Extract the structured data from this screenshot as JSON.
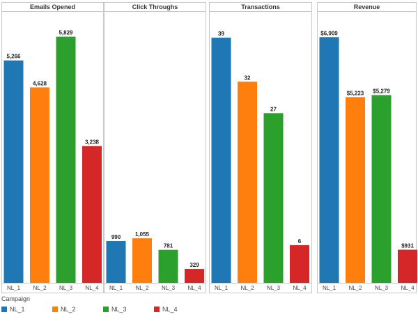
{
  "chart_data": [
    {
      "type": "bar",
      "title": "Emails Opened",
      "categories": [
        "NL_1",
        "NL_2",
        "NL_3",
        "NL_4"
      ],
      "values": [
        5266,
        4628,
        5829,
        3238
      ],
      "value_labels": [
        "5,266",
        "4,628",
        "5,829",
        "3,238"
      ],
      "ylim": [
        0,
        6400
      ]
    },
    {
      "type": "bar",
      "title": "Click Throughs",
      "categories": [
        "NL_1",
        "NL_2",
        "NL_3",
        "NL_4"
      ],
      "values": [
        990,
        1055,
        781,
        329
      ],
      "value_labels": [
        "990",
        "1,055",
        "781",
        "329"
      ],
      "ylim": [
        0,
        6400
      ]
    },
    {
      "type": "bar",
      "title": "Transactions",
      "categories": [
        "NL_1",
        "NL_2",
        "NL_3",
        "NL_4"
      ],
      "values": [
        39,
        32,
        27,
        6
      ],
      "value_labels": [
        "39",
        "32",
        "27",
        "6"
      ],
      "ylim": [
        0,
        43
      ]
    },
    {
      "type": "bar",
      "title": "Revenue",
      "categories": [
        "NL_1",
        "NL_2",
        "NL_3",
        "NL_4"
      ],
      "values": [
        6909,
        5223,
        5279,
        931
      ],
      "value_labels": [
        "$6,909",
        "$5,223",
        "$5,279",
        "$931"
      ],
      "ylim": [
        0,
        7600
      ]
    }
  ],
  "colors": {
    "NL_1": "#1f77b4",
    "NL_2": "#ff7f0e",
    "NL_3": "#2ca02c",
    "NL_4": "#d62728",
    "border": "#c8c8c8"
  },
  "legend": {
    "title": "Campaign",
    "items": [
      {
        "label": "NL_1",
        "color": "#1f77b4"
      },
      {
        "label": "NL_2",
        "color": "#ff7f0e"
      },
      {
        "label": "NL_3",
        "color": "#2ca02c"
      },
      {
        "label": "NL_4",
        "color": "#d62728"
      }
    ]
  }
}
